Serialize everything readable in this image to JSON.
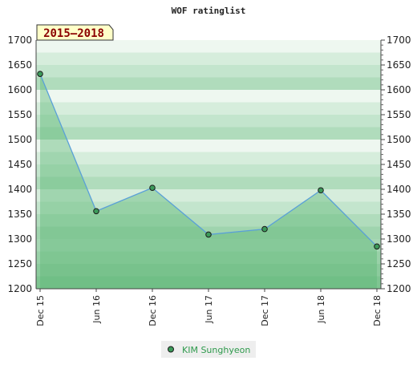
{
  "chart_data": {
    "type": "line",
    "title": "WOF ratinglist",
    "badge": "2015–2018",
    "categories": [
      "Dec 15",
      "Jun 16",
      "Dec 16",
      "Jun 17",
      "Dec 17",
      "Jun 18",
      "Dec 18"
    ],
    "series": [
      {
        "name": "KIM Sunghyeon",
        "values": [
          1632,
          1356,
          1403,
          1309,
          1320,
          1398,
          1285
        ]
      }
    ],
    "ylim": [
      1200,
      1700
    ],
    "yticks": [
      1200,
      1250,
      1300,
      1350,
      1400,
      1450,
      1500,
      1550,
      1600,
      1650,
      1700
    ],
    "grid": true,
    "legend": "bottom"
  },
  "colors": {
    "line": "#5aa0d8",
    "marker_fill": "#3c9a5a",
    "area_fill": "#5fb878",
    "badge_bg": "#ffffc8"
  }
}
